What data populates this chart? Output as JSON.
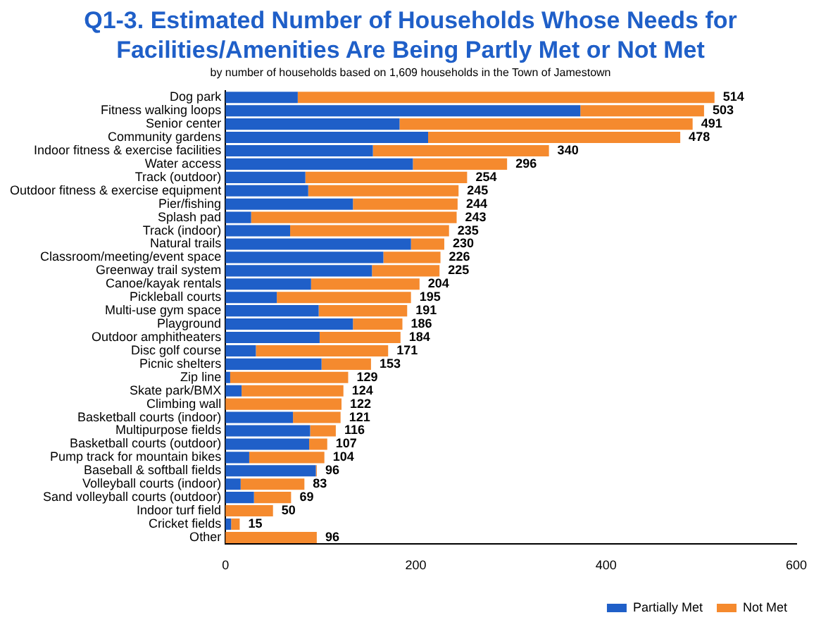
{
  "chart_data": {
    "type": "bar",
    "orientation": "horizontal",
    "stacked": true,
    "title": "Q1-3. Estimated Number of Households Whose Needs for Facilities/Amenities Are Being Partly Met or Not Met",
    "subtitle": "by number of households based on 1,609 households in the Town of Jamestown",
    "categories": [
      "Dog park",
      "Fitness walking loops",
      "Senior center",
      "Community gardens",
      "Indoor fitness & exercise facilities",
      "Water access",
      "Track (outdoor)",
      "Outdoor fitness & exercise equipment",
      "Pier/fishing",
      "Splash pad",
      "Track (indoor)",
      "Natural trails",
      "Classroom/meeting/event space",
      "Greenway trail system",
      "Canoe/kayak rentals",
      "Pickleball courts",
      "Multi-use gym space",
      "Playground",
      "Outdoor amphitheaters",
      "Disc golf course",
      "Picnic shelters",
      "Zip line",
      "Skate park/BMX",
      "Climbing wall",
      "Basketball courts (indoor)",
      "Multipurpose fields",
      "Basketball courts (outdoor)",
      "Pump track for mountain bikes",
      "Baseball & softball fields",
      "Volleyball courts (indoor)",
      "Sand volleyball courts (outdoor)",
      "Indoor turf field",
      "Cricket fields",
      "Other"
    ],
    "series": [
      {
        "name": "Partially Met",
        "color": "#1f5fc8",
        "values": [
          76,
          373,
          183,
          213,
          155,
          197,
          84,
          87,
          134,
          27,
          68,
          195,
          166,
          154,
          90,
          54,
          98,
          134,
          99,
          32,
          101,
          5,
          17,
          0,
          71,
          89,
          88,
          25,
          95,
          16,
          30,
          0,
          6,
          0
        ]
      },
      {
        "name": "Not Met",
        "color": "#f58a2e",
        "values": [
          438,
          130,
          308,
          265,
          185,
          99,
          170,
          158,
          110,
          216,
          167,
          35,
          60,
          71,
          114,
          141,
          93,
          52,
          85,
          139,
          52,
          124,
          107,
          122,
          50,
          27,
          19,
          79,
          1,
          67,
          39,
          50,
          9,
          96
        ]
      }
    ],
    "totals": [
      "514",
      "503",
      "491",
      "478",
      "340",
      "296",
      "254",
      "245",
      "244",
      "243",
      "235",
      "230",
      "226",
      "225",
      "204",
      "195",
      "191",
      "186",
      "184",
      "171",
      "153",
      "129",
      "124",
      "122",
      "121",
      "116",
      "107",
      "104",
      "96",
      "83",
      "69",
      "50",
      "15",
      "96"
    ],
    "xlim": [
      0,
      600
    ],
    "xticks": [
      0,
      200,
      400,
      600
    ],
    "grid": false,
    "legend": "bottom right"
  }
}
